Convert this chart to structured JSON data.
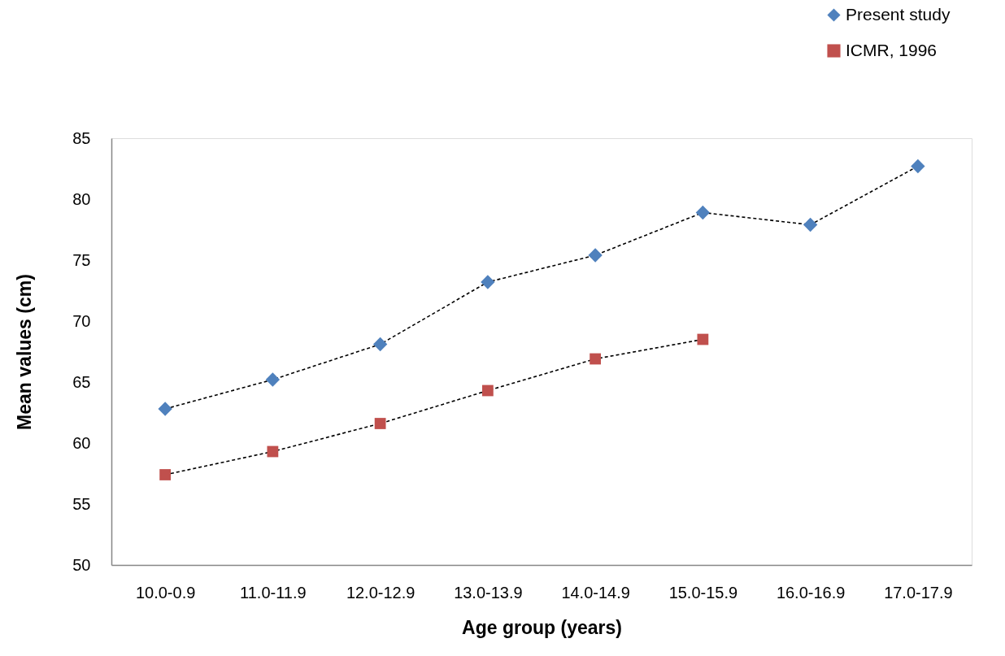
{
  "chart_data": {
    "type": "line",
    "xlabel": "Age group (years)",
    "ylabel": "Mean values (cm)",
    "categories": [
      "10.0-0.9",
      "11.0-11.9",
      "12.0-12.9",
      "13.0-13.9",
      "14.0-14.9",
      "15.0-15.9",
      "16.0-16.9",
      "17.0-17.9"
    ],
    "series": [
      {
        "name": "Present study",
        "color": "#4f81bd",
        "marker": "diamond",
        "values": [
          62.8,
          65.2,
          68.1,
          73.2,
          75.4,
          78.9,
          77.9,
          82.7
        ]
      },
      {
        "name": "ICMR, 1996",
        "color": "#c0504d",
        "marker": "square",
        "values": [
          57.4,
          59.3,
          61.6,
          64.3,
          66.9,
          68.5,
          null,
          null
        ]
      }
    ],
    "ylim": [
      50,
      85
    ],
    "yticks": [
      50,
      55,
      60,
      65,
      70,
      75,
      80,
      85
    ],
    "legend": "top right",
    "line_style": "dashed"
  }
}
